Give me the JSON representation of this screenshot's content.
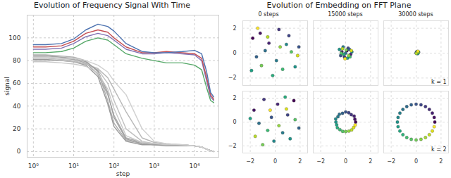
{
  "chart_data": [
    {
      "type": "line",
      "title": "Evolution of Frequency Signal With Time",
      "x_label": "step",
      "y_label": "signal",
      "log": "x",
      "grid": true,
      "x": [
        1,
        2,
        5,
        10,
        20,
        40,
        70,
        100,
        200,
        500,
        1000,
        2000,
        5000,
        10000,
        15000,
        20000,
        25000,
        30000
      ],
      "xlim": [
        0.7,
        40000
      ],
      "xticks": [
        {
          "value": 1,
          "label": "10⁰"
        },
        {
          "value": 10,
          "label": "10¹"
        },
        {
          "value": 100,
          "label": "10²"
        },
        {
          "value": 1000,
          "label": "10³"
        },
        {
          "value": 10000,
          "label": "10⁴"
        }
      ],
      "ylim": [
        -5,
        120
      ],
      "yticks": [
        0,
        20,
        40,
        60,
        80,
        100
      ],
      "series": [
        {
          "color": "#b0b0b0",
          "values": [
            85,
            85,
            84,
            83,
            80,
            70,
            45,
            25,
            10,
            7,
            6,
            6,
            6,
            5,
            4,
            2,
            1,
            0
          ]
        },
        {
          "color": "#a8a8a8",
          "values": [
            83,
            83,
            82,
            81,
            78,
            68,
            50,
            32,
            12,
            8,
            7,
            6,
            6,
            5,
            4,
            2,
            1,
            0
          ]
        },
        {
          "color": "#c0c0c0",
          "values": [
            82,
            82,
            81,
            80,
            77,
            72,
            60,
            45,
            20,
            9,
            7,
            6,
            6,
            5,
            4,
            2,
            1,
            0
          ]
        },
        {
          "color": "#999999",
          "values": [
            81,
            81,
            80,
            79,
            76,
            66,
            42,
            22,
            9,
            6,
            6,
            5,
            5,
            5,
            4,
            2,
            1,
            0
          ]
        },
        {
          "color": "#b8b8b8",
          "values": [
            80,
            80,
            80,
            79,
            77,
            73,
            65,
            55,
            35,
            12,
            8,
            7,
            6,
            5,
            4,
            2,
            1,
            0
          ]
        },
        {
          "color": "#a0a0a0",
          "values": [
            84,
            84,
            83,
            82,
            79,
            71,
            52,
            30,
            11,
            7,
            6,
            6,
            5,
            5,
            4,
            2,
            1,
            0
          ]
        },
        {
          "color": "#c8c8c8",
          "values": [
            79,
            79,
            78,
            77,
            75,
            69,
            55,
            38,
            14,
            8,
            7,
            6,
            6,
            5,
            4,
            2,
            1,
            0
          ]
        },
        {
          "color": "#d0d0d0",
          "values": [
            83,
            83,
            82,
            82,
            80,
            76,
            70,
            62,
            50,
            20,
            9,
            7,
            6,
            5,
            4,
            2,
            1,
            0
          ]
        },
        {
          "color": "#55a868",
          "values": [
            87,
            87,
            88,
            91,
            97,
            100,
            98,
            94,
            86,
            82,
            80,
            78,
            78,
            76,
            72,
            56,
            45,
            43
          ]
        },
        {
          "color": "#8172b2",
          "values": [
            90,
            90,
            91,
            95,
            101,
            104,
            102,
            98,
            90,
            86,
            86,
            87,
            86,
            85,
            80,
            62,
            48,
            45
          ]
        },
        {
          "color": "#c44e52",
          "values": [
            92,
            92,
            93,
            97,
            104,
            107,
            105,
            100,
            92,
            87,
            87,
            88,
            87,
            86,
            82,
            65,
            50,
            46
          ]
        },
        {
          "color": "#4c72b0",
          "values": [
            94,
            94,
            95,
            99,
            107,
            112,
            110,
            106,
            95,
            88,
            87,
            87,
            88,
            89,
            86,
            70,
            52,
            48
          ]
        }
      ]
    },
    {
      "type": "grid",
      "title": "Evolution of Embedding on FFT Plane",
      "charts": [
        {
          "type": "scatter",
          "title": "0 steps",
          "color": "viridis",
          "grid": true,
          "tick_labels": "y",
          "xlim": [
            -2.6,
            2.6
          ],
          "ylim": [
            -2.6,
            2.6
          ],
          "xticks": [
            {
              "value": -2,
              "label": "−2"
            },
            0,
            2
          ],
          "yticks": [
            {
              "value": -2,
              "label": "−2"
            },
            0,
            2
          ],
          "x": [
            -1.8,
            -1.2,
            -0.5,
            0.3,
            1.1,
            1.9,
            -1.5,
            -0.8,
            0.1,
            0.9,
            1.6,
            -1.9,
            -0.2,
            0.6,
            1.3,
            -1.1,
            0.4,
            -0.6,
            1.8,
            -1.4
          ],
          "values": [
            1.2,
            1.6,
            0.8,
            1.9,
            1.4,
            0.5,
            -0.3,
            0.2,
            -0.6,
            0.7,
            -1.1,
            -1.4,
            -1.8,
            -1.3,
            0.1,
            -1.0,
            0.5,
            1.3,
            -0.2,
            2.0
          ]
        },
        {
          "type": "scatter",
          "title": "15000 steps",
          "color": "viridis",
          "grid": true,
          "tick_labels": false,
          "xlim": [
            -2.6,
            2.6
          ],
          "ylim": [
            -2.6,
            2.6
          ],
          "xticks": [
            {
              "value": -2,
              "label": "−2"
            },
            0,
            2
          ],
          "yticks": [
            {
              "value": -2,
              "label": "−2"
            },
            0,
            2
          ],
          "x": [
            0.1,
            -0.3,
            0.4,
            -0.1,
            0.2,
            -0.4,
            0.3,
            0.0,
            -0.2,
            0.5,
            -0.5,
            0.15,
            -0.15,
            0.35,
            -0.35,
            0.05,
            0.25,
            -0.25,
            0.45,
            -0.05
          ],
          "values": [
            0.2,
            0.1,
            -0.1,
            -0.3,
            0.4,
            -0.2,
            0.3,
            0.0,
            0.5,
            0.1,
            0.3,
            -0.4,
            -0.1,
            -0.3,
            0.0,
            0.25,
            -0.2,
            0.35,
            0.2,
            -0.45
          ]
        },
        {
          "type": "scatter",
          "title": "30000 steps",
          "annotation": "k = 1",
          "color": "viridis",
          "grid": true,
          "tick_labels": false,
          "xlim": [
            -2.6,
            2.6
          ],
          "ylim": [
            -2.6,
            2.6
          ],
          "xticks": [
            {
              "value": -2,
              "label": "−2"
            },
            0,
            2
          ],
          "yticks": [
            {
              "value": -2,
              "label": "−2"
            },
            0,
            2
          ],
          "x": [
            0.1,
            0.05,
            0.15,
            0.0,
            0.2,
            0.12,
            0.08,
            0.18,
            0.02,
            0.14
          ],
          "values": [
            0.05,
            0.1,
            0.0,
            0.02,
            0.08,
            -0.04,
            0.12,
            0.06,
            -0.02,
            0.15
          ]
        },
        {
          "type": "scatter",
          "color": "viridis",
          "grid": true,
          "tick_labels": true,
          "xlim": [
            -2.6,
            2.6
          ],
          "ylim": [
            -2.6,
            2.6
          ],
          "xticks": [
            {
              "value": -2,
              "label": "−2"
            },
            0,
            2
          ],
          "yticks": [
            {
              "value": -2,
              "label": "−2"
            },
            0,
            2
          ],
          "x": [
            1.5,
            -1.7,
            0.2,
            -0.9,
            1.0,
            -0.3,
            1.9,
            -1.3,
            0.6,
            -0.1,
            1.2,
            -2.0,
            0.8,
            -0.6,
            1.6,
            -1.0,
            0.3,
            -1.6,
            0.9,
            -0.4
          ],
          "values": [
            1.8,
            1.0,
            1.5,
            1.9,
            0.6,
            0.4,
            -0.5,
            -0.1,
            -0.9,
            -1.6,
            -1.4,
            0.3,
            2.1,
            -0.7,
            0.2,
            -1.9,
            -0.3,
            -1.2,
            1.1,
            1.0
          ]
        },
        {
          "type": "scatter",
          "color": "viridis",
          "grid": true,
          "tick_labels": "x",
          "xlim": [
            -2.6,
            2.6
          ],
          "ylim": [
            -2.6,
            2.6
          ],
          "xticks": [
            {
              "value": -2,
              "label": "−2"
            },
            0,
            2
          ],
          "yticks": [
            {
              "value": -2,
              "label": "−2"
            },
            0,
            2
          ],
          "x": [
            0.8,
            0.74,
            0.68,
            0.45,
            0.25,
            0.0,
            -0.25,
            -0.5,
            -0.62,
            -0.8,
            -0.78,
            -0.72,
            -0.66,
            -0.46,
            -0.24,
            0.0,
            0.26,
            0.48,
            0.64,
            0.76
          ],
          "values": [
            0.0,
            0.24,
            0.5,
            0.62,
            0.78,
            0.85,
            0.74,
            0.66,
            0.45,
            0.26,
            0.0,
            -0.24,
            -0.48,
            -0.64,
            -0.78,
            -0.8,
            -0.76,
            -0.66,
            -0.46,
            -0.25
          ]
        },
        {
          "type": "scatter",
          "annotation": "k = 2",
          "color": "viridis",
          "grid": true,
          "tick_labels": "x",
          "xlim": [
            -2.6,
            2.6
          ],
          "ylim": [
            -2.6,
            2.6
          ],
          "xticks": [
            {
              "value": -2,
              "label": "−2"
            },
            0,
            2
          ],
          "yticks": [
            {
              "value": -2,
              "label": "−2"
            },
            0,
            2
          ],
          "x": [
            1.5,
            1.45,
            1.3,
            1.06,
            0.75,
            0.39,
            0.0,
            -0.39,
            -0.75,
            -1.06,
            -1.3,
            -1.45,
            -1.5,
            -1.45,
            -1.3,
            -1.06,
            -0.75,
            -0.39,
            0.0,
            0.39,
            0.75,
            1.06,
            1.3,
            1.45
          ],
          "values": [
            0.0,
            0.39,
            0.75,
            1.06,
            1.3,
            1.45,
            1.5,
            1.45,
            1.3,
            1.06,
            0.75,
            0.39,
            0.0,
            -0.39,
            -0.75,
            -1.06,
            -1.3,
            -1.45,
            -1.5,
            -1.45,
            -1.3,
            -1.06,
            -0.75,
            -0.39
          ]
        }
      ]
    }
  ]
}
